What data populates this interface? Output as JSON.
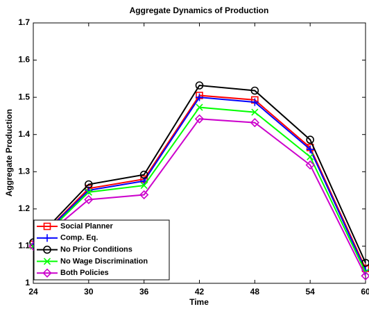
{
  "chart_data": {
    "type": "line",
    "title": "Aggregate Dynamics of Production",
    "x_label": "Time",
    "y_label": "Aggregate Production",
    "x": [
      24,
      30,
      36,
      42,
      48,
      54,
      60
    ],
    "xlim": [
      24,
      60
    ],
    "xticks": [
      24,
      30,
      36,
      42,
      48,
      54,
      60
    ],
    "ylim": [
      1,
      1.7
    ],
    "yticks": [
      1,
      1.1,
      1.2,
      1.3,
      1.4,
      1.5,
      1.6,
      1.7
    ],
    "legend_location": "southwest",
    "series": [
      {
        "name": "Social Planner",
        "color": "#ff0000",
        "marker": "square",
        "values": [
          1.105,
          1.255,
          1.28,
          1.505,
          1.493,
          1.365,
          1.04
        ]
      },
      {
        "name": "Comp. Eq.",
        "color": "#0000ff",
        "marker": "plus",
        "values": [
          1.105,
          1.25,
          1.275,
          1.5,
          1.487,
          1.36,
          1.035
        ]
      },
      {
        "name": "No Prior Conditions",
        "color": "#000000",
        "marker": "circle",
        "values": [
          1.11,
          1.266,
          1.292,
          1.532,
          1.518,
          1.386,
          1.055
        ]
      },
      {
        "name": "No Wage Discrimination",
        "color": "#00ff00",
        "marker": "x",
        "values": [
          1.1,
          1.245,
          1.263,
          1.473,
          1.46,
          1.34,
          1.03
        ]
      },
      {
        "name": "Both Policies",
        "color": "#cc00cc",
        "marker": "diamond",
        "values": [
          1.1,
          1.225,
          1.238,
          1.442,
          1.432,
          1.318,
          1.02
        ]
      }
    ]
  }
}
